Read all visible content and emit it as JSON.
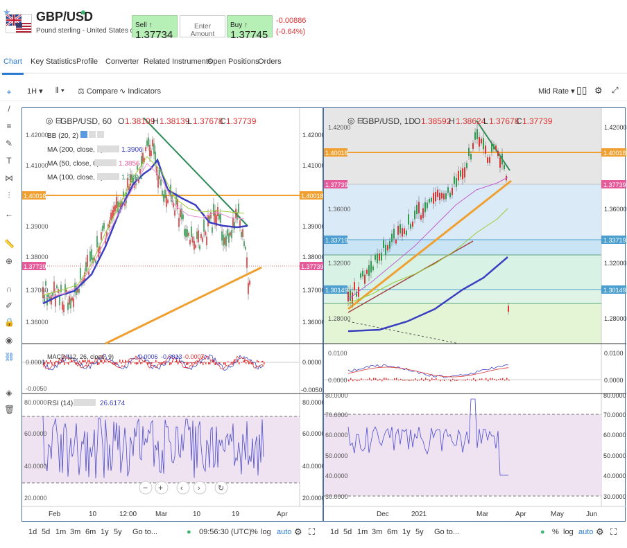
{
  "header": {
    "symbol": "GBP/USD",
    "description": "Pound sterling - United States dollar",
    "sell_label": "Sell ↑",
    "sell_price": "1.37734",
    "amount_placeholder": "Enter Amount",
    "buy_label": "Buy ↑",
    "buy_price": "1.37745",
    "change": "-0.00886",
    "change_pct": "(-0.64%)"
  },
  "tabs": [
    "Chart",
    "Key Statistics",
    "Profile",
    "Converter",
    "Related Instruments",
    "Open Positions",
    "Orders"
  ],
  "toolbar": {
    "interval": "1H",
    "compare": "Compare",
    "indicators": "Indicators",
    "price_type": "Mid Rate"
  },
  "left_chart": {
    "legend_title": "GBP/USD, 60",
    "o": "1.38109",
    "h": "1.38139",
    "l": "1.37678",
    "c": "1.37739",
    "bb": "BB (20, 2)",
    "ma200": "MA (200, close, 0)",
    "ma200_val": "1.3906",
    "ma50": "MA (50, close, 0)",
    "ma50_val": "1.3856",
    "ma100": "MA (100, close, 0)",
    "ma100_val": "1.3894",
    "price_axis": [
      "1.42000",
      "1.41000",
      "1.40018",
      "1.39000",
      "1.38000",
      "1.37739",
      "1.37000",
      "1.36000"
    ],
    "level_label": "1.40018",
    "current_label": "1.37739",
    "macd_label": "MACD (12, 26, close, 9)",
    "macd_v1": "0.0006",
    "macd_v2": "-0.0013",
    "macd_v3": "-0.0007",
    "macd_axis": [
      "0.0000",
      "-0.0050"
    ],
    "rsi_label": "RSI (14)",
    "rsi_val": "26.6174",
    "rsi_axis": [
      "80.0000",
      "60.0000",
      "40.0000",
      "20.0000"
    ],
    "time_axis": [
      "Feb",
      "10",
      "12:00",
      "Mar",
      "10",
      "19",
      "Apr"
    ],
    "ranges": [
      "1d",
      "5d",
      "1m",
      "3m",
      "6m",
      "1y",
      "5y",
      "Go to..."
    ],
    "clock": "09:56:30 (UTC)",
    "pct": "%",
    "log": "log",
    "auto": "auto"
  },
  "right_chart": {
    "legend_title": "GBP/USD, 1D",
    "o": "1.38592",
    "h": "1.38624",
    "l": "1.37678",
    "c": "1.37739",
    "price_axis": [
      "1.42000",
      "1.40018",
      "1.37739",
      "1.36000",
      "1.33719",
      "1.32000",
      "1.30149",
      "1.28000"
    ],
    "level_left": "1.40018",
    "current_left": "1.37739",
    "fib1": "1.33719",
    "fib2": "1.30149",
    "macd_axis": [
      "0.0100",
      "0.0000"
    ],
    "rsi_axis": [
      "80.0000",
      "70.0000",
      "60.0000",
      "50.0000",
      "40.0000",
      "30.0000"
    ],
    "time_axis": [
      "Dec",
      "2021",
      "Mar",
      "Apr",
      "May",
      "Jun"
    ],
    "ranges": [
      "1d",
      "5d",
      "1m",
      "3m",
      "6m",
      "1y",
      "5y",
      "Go to..."
    ],
    "pct": "%",
    "log": "log",
    "auto": "auto"
  },
  "colors": {
    "orange": "#f0a030",
    "blue": "#2a7ad2",
    "red": "#d33",
    "pink": "#e75a9a"
  }
}
